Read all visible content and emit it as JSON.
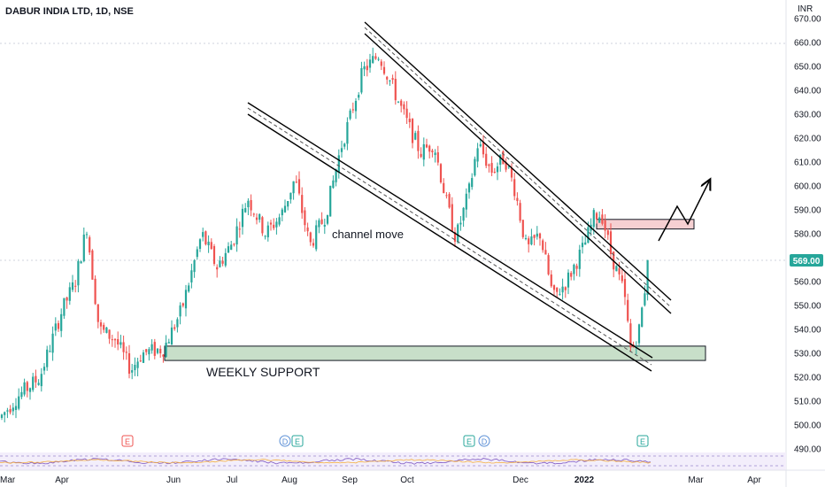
{
  "header": {
    "title": "DABUR INDIA LTD, 1D, NSE"
  },
  "currency_label": "INR",
  "price_badge": "569.00",
  "annotations": {
    "channel": "channel move",
    "support": "WEEKLY SUPPORT"
  },
  "event_markers": [
    "E",
    "D",
    "E",
    "E",
    "D",
    "E"
  ],
  "colors": {
    "up": "#26a69a",
    "down": "#ef5350",
    "support_zone": "#c8dfc9",
    "resistance_zone": "#f6d0d2",
    "price_badge": "#26a69a",
    "grid": "#e0e3eb"
  },
  "chart_data": {
    "type": "candlestick",
    "symbol": "DABUR INDIA LTD",
    "interval": "1D",
    "exchange": "NSE",
    "ylim": [
      490,
      670
    ],
    "y_ticks": [
      "490.00",
      "500.00",
      "510.00",
      "520.00",
      "530.00",
      "540.00",
      "550.00",
      "560.00",
      "570.00",
      "580.00",
      "590.00",
      "600.00",
      "610.00",
      "620.00",
      "630.00",
      "640.00",
      "650.00",
      "660.00",
      "670.00"
    ],
    "x_ticks": [
      "Mar",
      "Apr",
      "Jun",
      "Jul",
      "Aug",
      "Sep",
      "Oct",
      "Dec",
      "2022",
      "Mar",
      "Apr"
    ],
    "last_price": 569.0,
    "zones": [
      {
        "name": "WEEKLY SUPPORT",
        "low": 527,
        "high": 533
      },
      {
        "name": "resistance",
        "low": 582,
        "high": 586
      }
    ],
    "approx_closes": [
      {
        "period": "Mar",
        "close": 510
      },
      {
        "period": "Apr",
        "close": 560
      },
      {
        "period": "Apr-end",
        "close": 583
      },
      {
        "period": "May",
        "close": 528
      },
      {
        "period": "Jun",
        "close": 560
      },
      {
        "period": "Jul",
        "close": 590
      },
      {
        "period": "Aug",
        "close": 575
      },
      {
        "period": "Sep",
        "close": 655
      },
      {
        "period": "Oct",
        "close": 615
      },
      {
        "period": "Nov",
        "close": 580
      },
      {
        "period": "Dec",
        "close": 560
      },
      {
        "period": "Jan",
        "close": 590
      },
      {
        "period": "late Jan",
        "close": 529
      },
      {
        "period": "Feb",
        "close": 569
      }
    ]
  }
}
